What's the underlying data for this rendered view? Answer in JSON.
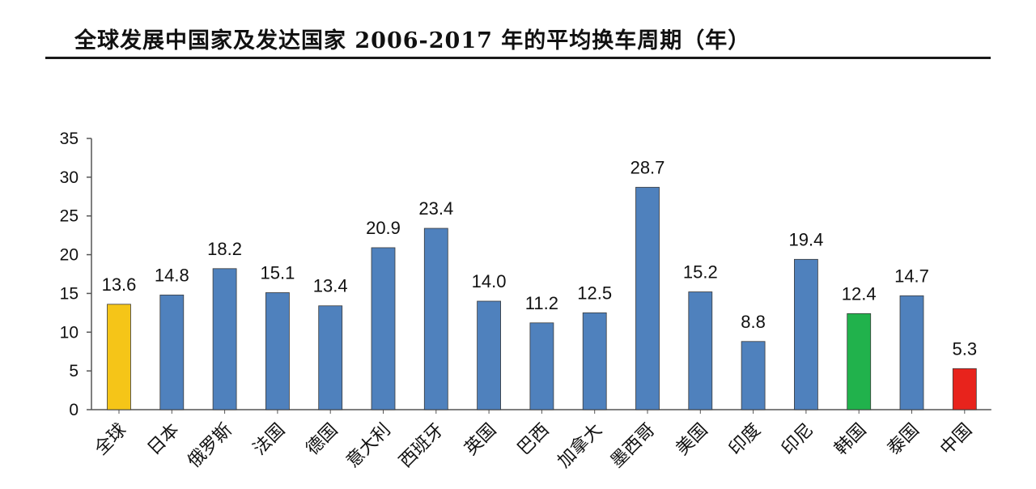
{
  "chart_data": {
    "type": "bar",
    "title": "全球发展中国家及发达国家 2006-2017 年的平均换车周期（年）",
    "xlabel": "",
    "ylabel": "",
    "ylim": [
      0,
      35
    ],
    "yticks": [
      0,
      5,
      10,
      15,
      20,
      25,
      30,
      35
    ],
    "categories": [
      "全球",
      "日本",
      "俄罗斯",
      "法国",
      "德国",
      "意大利",
      "西班牙",
      "英国",
      "巴西",
      "加拿大",
      "墨西哥",
      "美国",
      "印度",
      "印尼",
      "韩国",
      "泰国",
      "中国"
    ],
    "values": [
      13.6,
      14.8,
      18.2,
      15.1,
      13.4,
      20.9,
      23.4,
      14.0,
      11.2,
      12.5,
      28.7,
      15.2,
      8.8,
      19.4,
      12.4,
      14.7,
      5.3
    ],
    "value_labels": [
      "13.6",
      "14.8",
      "18.2",
      "15.1",
      "13.4",
      "20.9",
      "23.4",
      "14.0",
      "11.2",
      "12.5",
      "28.7",
      "15.2",
      "8.8",
      "19.4",
      "12.4",
      "14.7",
      "5.3"
    ],
    "bar_colors": [
      "#f5c518",
      "#4f81bd",
      "#4f81bd",
      "#4f81bd",
      "#4f81bd",
      "#4f81bd",
      "#4f81bd",
      "#4f81bd",
      "#4f81bd",
      "#4f81bd",
      "#4f81bd",
      "#4f81bd",
      "#4f81bd",
      "#4f81bd",
      "#21b24c",
      "#4f81bd",
      "#e8231c"
    ],
    "grid": false,
    "legend": "none"
  }
}
